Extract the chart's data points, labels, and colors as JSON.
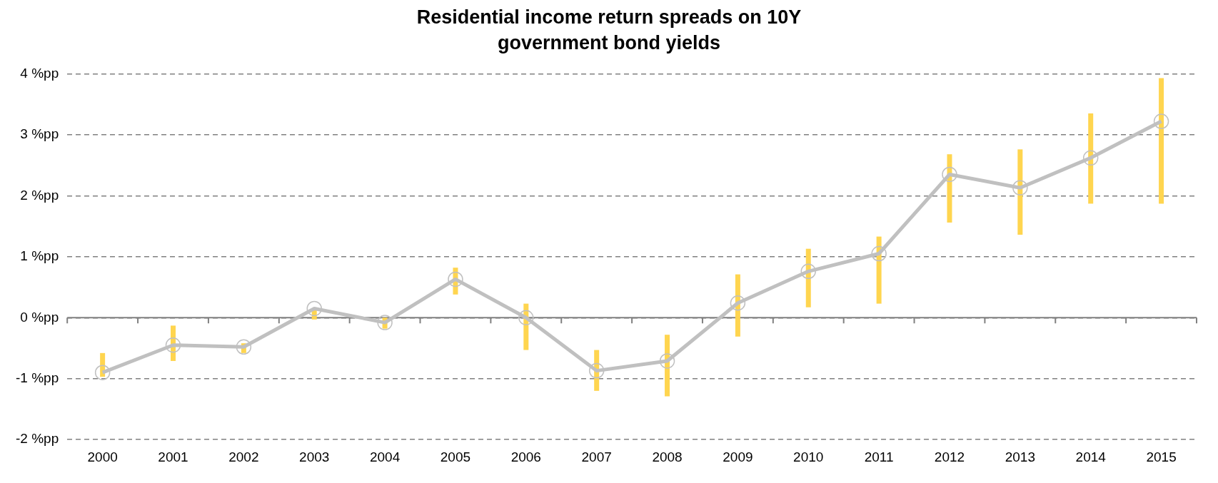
{
  "chart_data": {
    "type": "line",
    "title": "Residential income return spreads on 10Y government bond yields",
    "categories": [
      "2000",
      "2001",
      "2002",
      "2003",
      "2004",
      "2005",
      "2006",
      "2007",
      "2008",
      "2009",
      "2010",
      "2011",
      "2012",
      "2013",
      "2014",
      "2015"
    ],
    "series": [
      {
        "color": "#c0c0c0",
        "values": [
          -0.9,
          -0.45,
          -0.48,
          0.15,
          -0.08,
          0.63,
          0.0,
          -0.87,
          -0.71,
          0.24,
          0.76,
          1.05,
          2.35,
          2.13,
          2.62,
          3.22
        ],
        "errors": [
          [
            -0.97,
            -0.58
          ],
          [
            -0.71,
            -0.13
          ],
          [
            -0.58,
            -0.42
          ],
          [
            -0.03,
            0.15
          ],
          [
            -0.18,
            0.0
          ],
          [
            0.38,
            0.82
          ],
          [
            -0.53,
            0.23
          ],
          [
            -1.2,
            -0.53
          ],
          [
            -1.29,
            -0.28
          ],
          [
            -0.31,
            0.71
          ],
          [
            0.17,
            1.13
          ],
          [
            0.23,
            1.33
          ],
          [
            1.56,
            2.68
          ],
          [
            1.36,
            2.76
          ],
          [
            1.87,
            3.35
          ],
          [
            1.87,
            3.93
          ]
        ]
      }
    ],
    "ylim": [
      -2,
      4
    ],
    "yticks": [
      {
        "value": -2,
        "label": "-2 %pp"
      },
      {
        "value": -1,
        "label": "-1 %pp"
      },
      {
        "value": 0,
        "label": "0 %pp"
      },
      {
        "value": 1,
        "label": "1 %pp"
      },
      {
        "value": 2,
        "label": "2 %pp"
      },
      {
        "value": 3,
        "label": "3 %pp"
      },
      {
        "value": 4,
        "label": "4 %pp"
      }
    ],
    "grid": "y",
    "legend": false,
    "marker": "circle",
    "line_style": "solid"
  }
}
